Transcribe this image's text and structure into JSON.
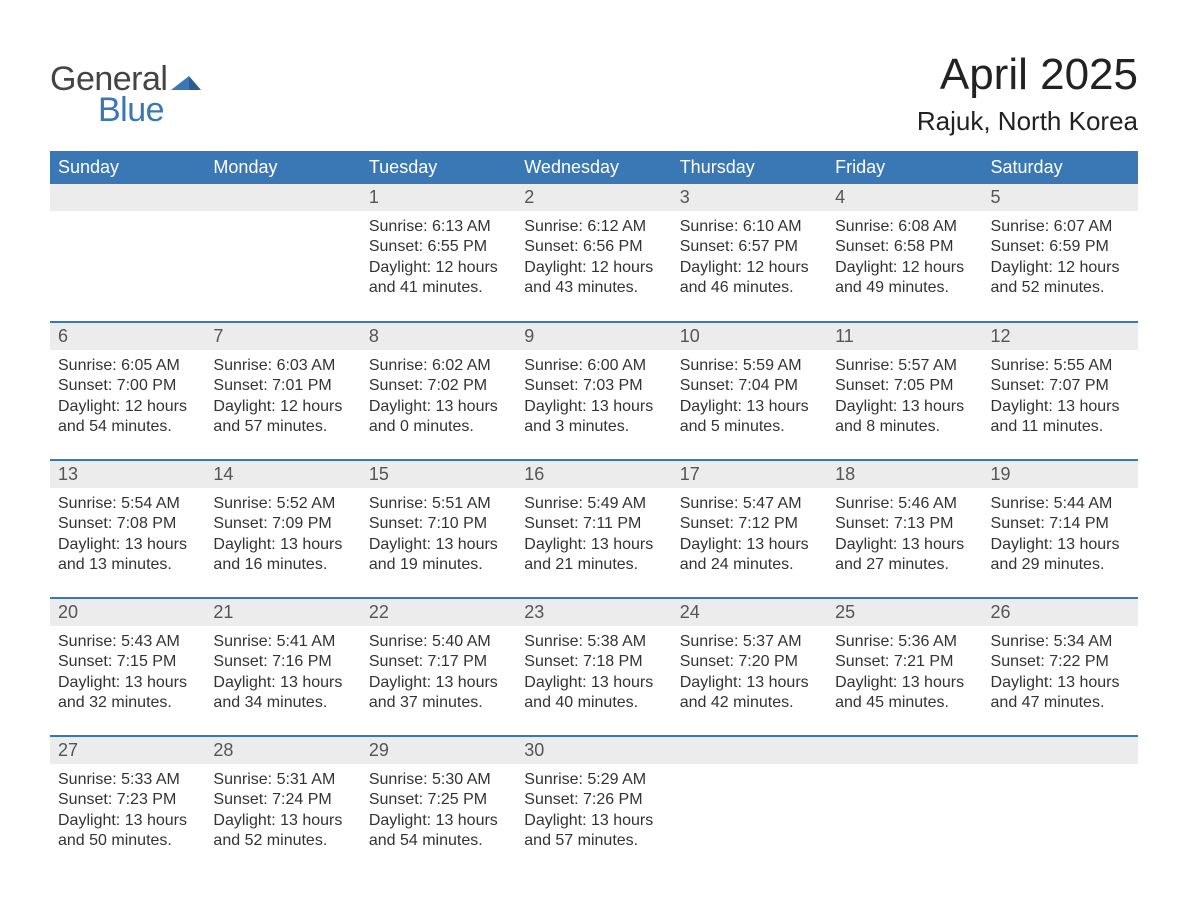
{
  "logo": {
    "word1": "General",
    "word2": "Blue",
    "word1_color": "#444444",
    "word2_color": "#3a78b5",
    "flag_color": "#3a78b5"
  },
  "title": {
    "month": "April 2025",
    "location": "Rajuk, North Korea",
    "month_fontsize": 44,
    "location_fontsize": 26,
    "text_color": "#222222"
  },
  "calendar": {
    "type": "table",
    "header_bg": "#3a78b5",
    "header_text_color": "#ffffff",
    "daynum_bg": "#ececec",
    "row_divider_color": "#3a78b5",
    "body_text_color": "#333333",
    "header_fontsize": 18,
    "daynum_fontsize": 18,
    "body_fontsize": 16,
    "columns": [
      "Sunday",
      "Monday",
      "Tuesday",
      "Wednesday",
      "Thursday",
      "Friday",
      "Saturday"
    ],
    "weeks": [
      [
        {
          "day": "",
          "sunrise": "",
          "sunset": "",
          "daylight": ""
        },
        {
          "day": "",
          "sunrise": "",
          "sunset": "",
          "daylight": ""
        },
        {
          "day": "1",
          "sunrise": "Sunrise: 6:13 AM",
          "sunset": "Sunset: 6:55 PM",
          "daylight": "Daylight: 12 hours and 41 minutes."
        },
        {
          "day": "2",
          "sunrise": "Sunrise: 6:12 AM",
          "sunset": "Sunset: 6:56 PM",
          "daylight": "Daylight: 12 hours and 43 minutes."
        },
        {
          "day": "3",
          "sunrise": "Sunrise: 6:10 AM",
          "sunset": "Sunset: 6:57 PM",
          "daylight": "Daylight: 12 hours and 46 minutes."
        },
        {
          "day": "4",
          "sunrise": "Sunrise: 6:08 AM",
          "sunset": "Sunset: 6:58 PM",
          "daylight": "Daylight: 12 hours and 49 minutes."
        },
        {
          "day": "5",
          "sunrise": "Sunrise: 6:07 AM",
          "sunset": "Sunset: 6:59 PM",
          "daylight": "Daylight: 12 hours and 52 minutes."
        }
      ],
      [
        {
          "day": "6",
          "sunrise": "Sunrise: 6:05 AM",
          "sunset": "Sunset: 7:00 PM",
          "daylight": "Daylight: 12 hours and 54 minutes."
        },
        {
          "day": "7",
          "sunrise": "Sunrise: 6:03 AM",
          "sunset": "Sunset: 7:01 PM",
          "daylight": "Daylight: 12 hours and 57 minutes."
        },
        {
          "day": "8",
          "sunrise": "Sunrise: 6:02 AM",
          "sunset": "Sunset: 7:02 PM",
          "daylight": "Daylight: 13 hours and 0 minutes."
        },
        {
          "day": "9",
          "sunrise": "Sunrise: 6:00 AM",
          "sunset": "Sunset: 7:03 PM",
          "daylight": "Daylight: 13 hours and 3 minutes."
        },
        {
          "day": "10",
          "sunrise": "Sunrise: 5:59 AM",
          "sunset": "Sunset: 7:04 PM",
          "daylight": "Daylight: 13 hours and 5 minutes."
        },
        {
          "day": "11",
          "sunrise": "Sunrise: 5:57 AM",
          "sunset": "Sunset: 7:05 PM",
          "daylight": "Daylight: 13 hours and 8 minutes."
        },
        {
          "day": "12",
          "sunrise": "Sunrise: 5:55 AM",
          "sunset": "Sunset: 7:07 PM",
          "daylight": "Daylight: 13 hours and 11 minutes."
        }
      ],
      [
        {
          "day": "13",
          "sunrise": "Sunrise: 5:54 AM",
          "sunset": "Sunset: 7:08 PM",
          "daylight": "Daylight: 13 hours and 13 minutes."
        },
        {
          "day": "14",
          "sunrise": "Sunrise: 5:52 AM",
          "sunset": "Sunset: 7:09 PM",
          "daylight": "Daylight: 13 hours and 16 minutes."
        },
        {
          "day": "15",
          "sunrise": "Sunrise: 5:51 AM",
          "sunset": "Sunset: 7:10 PM",
          "daylight": "Daylight: 13 hours and 19 minutes."
        },
        {
          "day": "16",
          "sunrise": "Sunrise: 5:49 AM",
          "sunset": "Sunset: 7:11 PM",
          "daylight": "Daylight: 13 hours and 21 minutes."
        },
        {
          "day": "17",
          "sunrise": "Sunrise: 5:47 AM",
          "sunset": "Sunset: 7:12 PM",
          "daylight": "Daylight: 13 hours and 24 minutes."
        },
        {
          "day": "18",
          "sunrise": "Sunrise: 5:46 AM",
          "sunset": "Sunset: 7:13 PM",
          "daylight": "Daylight: 13 hours and 27 minutes."
        },
        {
          "day": "19",
          "sunrise": "Sunrise: 5:44 AM",
          "sunset": "Sunset: 7:14 PM",
          "daylight": "Daylight: 13 hours and 29 minutes."
        }
      ],
      [
        {
          "day": "20",
          "sunrise": "Sunrise: 5:43 AM",
          "sunset": "Sunset: 7:15 PM",
          "daylight": "Daylight: 13 hours and 32 minutes."
        },
        {
          "day": "21",
          "sunrise": "Sunrise: 5:41 AM",
          "sunset": "Sunset: 7:16 PM",
          "daylight": "Daylight: 13 hours and 34 minutes."
        },
        {
          "day": "22",
          "sunrise": "Sunrise: 5:40 AM",
          "sunset": "Sunset: 7:17 PM",
          "daylight": "Daylight: 13 hours and 37 minutes."
        },
        {
          "day": "23",
          "sunrise": "Sunrise: 5:38 AM",
          "sunset": "Sunset: 7:18 PM",
          "daylight": "Daylight: 13 hours and 40 minutes."
        },
        {
          "day": "24",
          "sunrise": "Sunrise: 5:37 AM",
          "sunset": "Sunset: 7:20 PM",
          "daylight": "Daylight: 13 hours and 42 minutes."
        },
        {
          "day": "25",
          "sunrise": "Sunrise: 5:36 AM",
          "sunset": "Sunset: 7:21 PM",
          "daylight": "Daylight: 13 hours and 45 minutes."
        },
        {
          "day": "26",
          "sunrise": "Sunrise: 5:34 AM",
          "sunset": "Sunset: 7:22 PM",
          "daylight": "Daylight: 13 hours and 47 minutes."
        }
      ],
      [
        {
          "day": "27",
          "sunrise": "Sunrise: 5:33 AM",
          "sunset": "Sunset: 7:23 PM",
          "daylight": "Daylight: 13 hours and 50 minutes."
        },
        {
          "day": "28",
          "sunrise": "Sunrise: 5:31 AM",
          "sunset": "Sunset: 7:24 PM",
          "daylight": "Daylight: 13 hours and 52 minutes."
        },
        {
          "day": "29",
          "sunrise": "Sunrise: 5:30 AM",
          "sunset": "Sunset: 7:25 PM",
          "daylight": "Daylight: 13 hours and 54 minutes."
        },
        {
          "day": "30",
          "sunrise": "Sunrise: 5:29 AM",
          "sunset": "Sunset: 7:26 PM",
          "daylight": "Daylight: 13 hours and 57 minutes."
        },
        {
          "day": "",
          "sunrise": "",
          "sunset": "",
          "daylight": ""
        },
        {
          "day": "",
          "sunrise": "",
          "sunset": "",
          "daylight": ""
        },
        {
          "day": "",
          "sunrise": "",
          "sunset": "",
          "daylight": ""
        }
      ]
    ]
  }
}
